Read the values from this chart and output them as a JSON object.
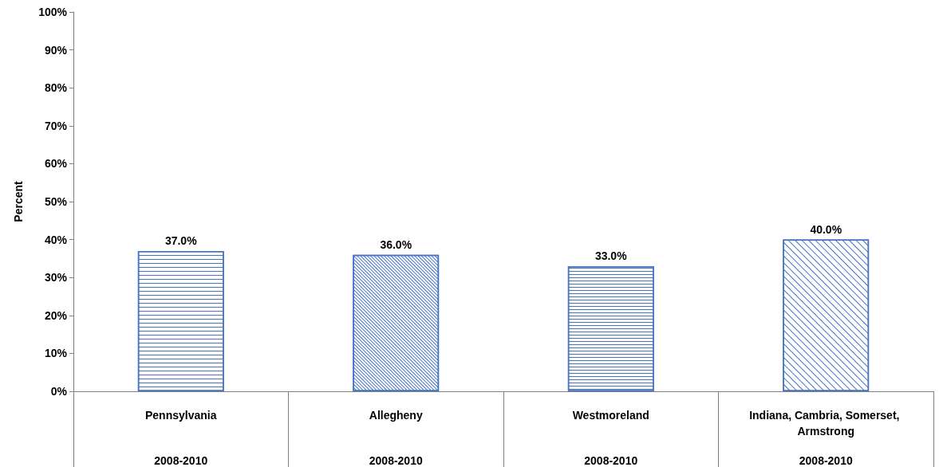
{
  "chart_data": {
    "type": "bar",
    "ylabel": "Percent",
    "categories": [
      "Pennsylvania",
      "Allegheny",
      "Westmoreland",
      "Indiana, Cambria, Somerset, Armstrong"
    ],
    "annotations": [
      "2008-2010",
      "2008-2010",
      "2008-2010",
      "2008-2010"
    ],
    "values": [
      37.0,
      36.0,
      33.0,
      40.0
    ],
    "value_labels": [
      "37.0%",
      "36.0%",
      "33.0%",
      "40.0%"
    ],
    "colors": [
      "#4472c4",
      "#4472c4",
      "#4472c4",
      "#4472c4"
    ],
    "ylim": [
      0,
      100
    ],
    "yticks": [
      {
        "value": 0,
        "label": "0%"
      },
      {
        "value": 10,
        "label": "10%"
      },
      {
        "value": 20,
        "label": "20%"
      },
      {
        "value": 30,
        "label": "30%"
      },
      {
        "value": 40,
        "label": "40%"
      },
      {
        "value": 50,
        "label": "50%"
      },
      {
        "value": 60,
        "label": "60%"
      },
      {
        "value": 70,
        "label": "70%"
      },
      {
        "value": 80,
        "label": "80%"
      },
      {
        "value": 90,
        "label": "90%"
      },
      {
        "value": 100,
        "label": "100%"
      }
    ],
    "grid": false
  }
}
